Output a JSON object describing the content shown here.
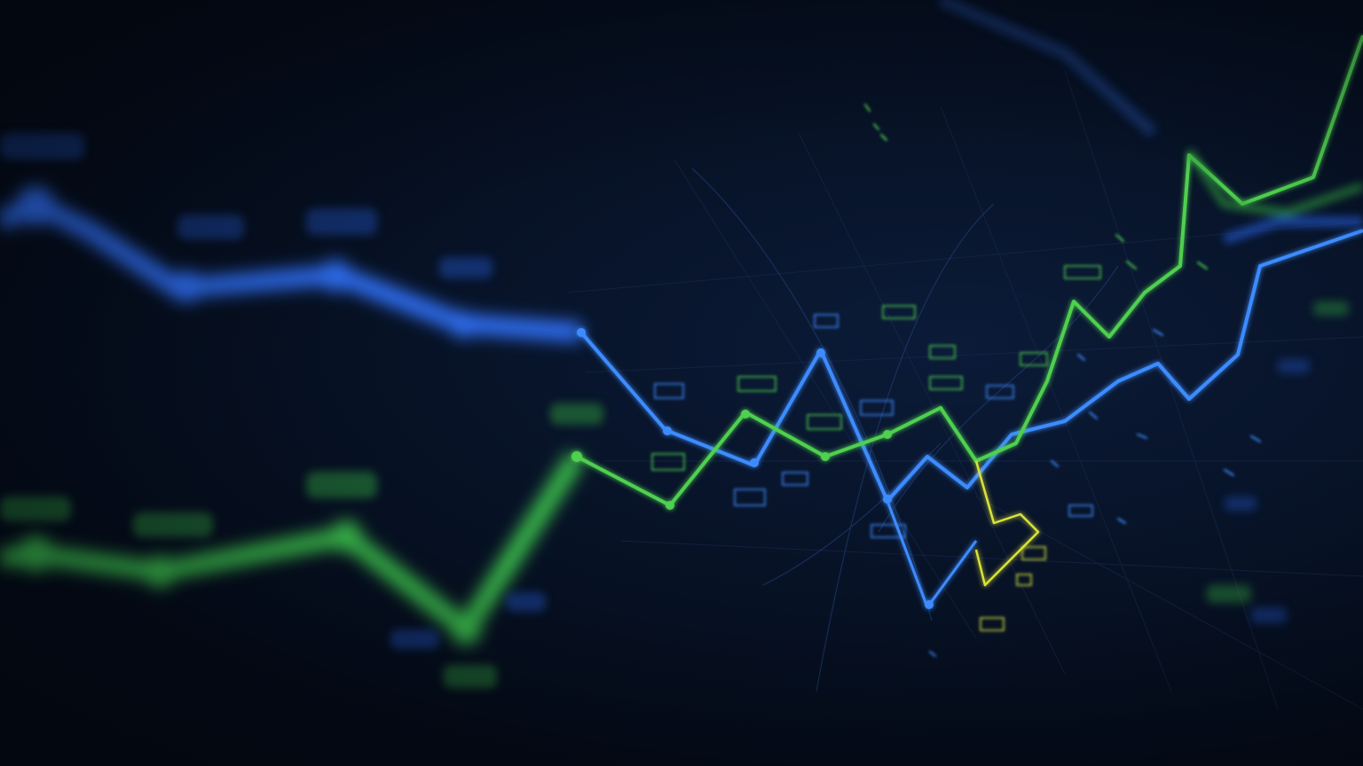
{
  "scene": {
    "description_free": true
  },
  "colors": {
    "background": "#040a16",
    "blue_line": "#2f6df0",
    "blue_bright": "#3c8cff",
    "green_line": "#39b54a",
    "green_bright": "#5fe05a",
    "yellow_accent": "#d9e23a",
    "grid": "#1a2c52"
  },
  "icons": [
    "line-chart-graphic"
  ]
}
